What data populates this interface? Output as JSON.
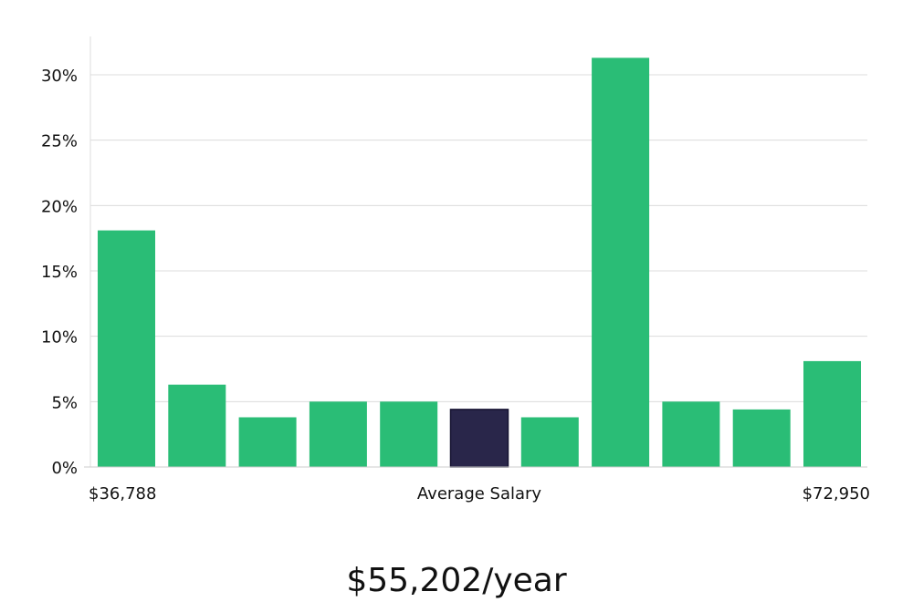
{
  "chart_data": {
    "type": "bar",
    "categories": [
      "1",
      "2",
      "3",
      "4",
      "5",
      "6",
      "7",
      "8",
      "9",
      "10",
      "11"
    ],
    "values": [
      18.1,
      6.3,
      3.8,
      5.0,
      5.0,
      4.4,
      3.8,
      31.3,
      5.0,
      4.4,
      8.1
    ],
    "highlight_index": 5,
    "ylim": [
      0,
      33
    ],
    "y_ticks": [
      "0%",
      "5%",
      "10%",
      "15%",
      "20%",
      "25%",
      "30%"
    ],
    "y_tick_values": [
      0,
      5,
      10,
      15,
      20,
      25,
      30
    ],
    "x_labels": {
      "min": "$36,788",
      "center": "Average Salary",
      "max": "$72,950"
    },
    "grid": true,
    "colors": {
      "bar": "#2abd76",
      "highlight": "#29264a",
      "grid": "#dcdcdc"
    }
  },
  "summary": {
    "salary": "$55,202/year"
  }
}
